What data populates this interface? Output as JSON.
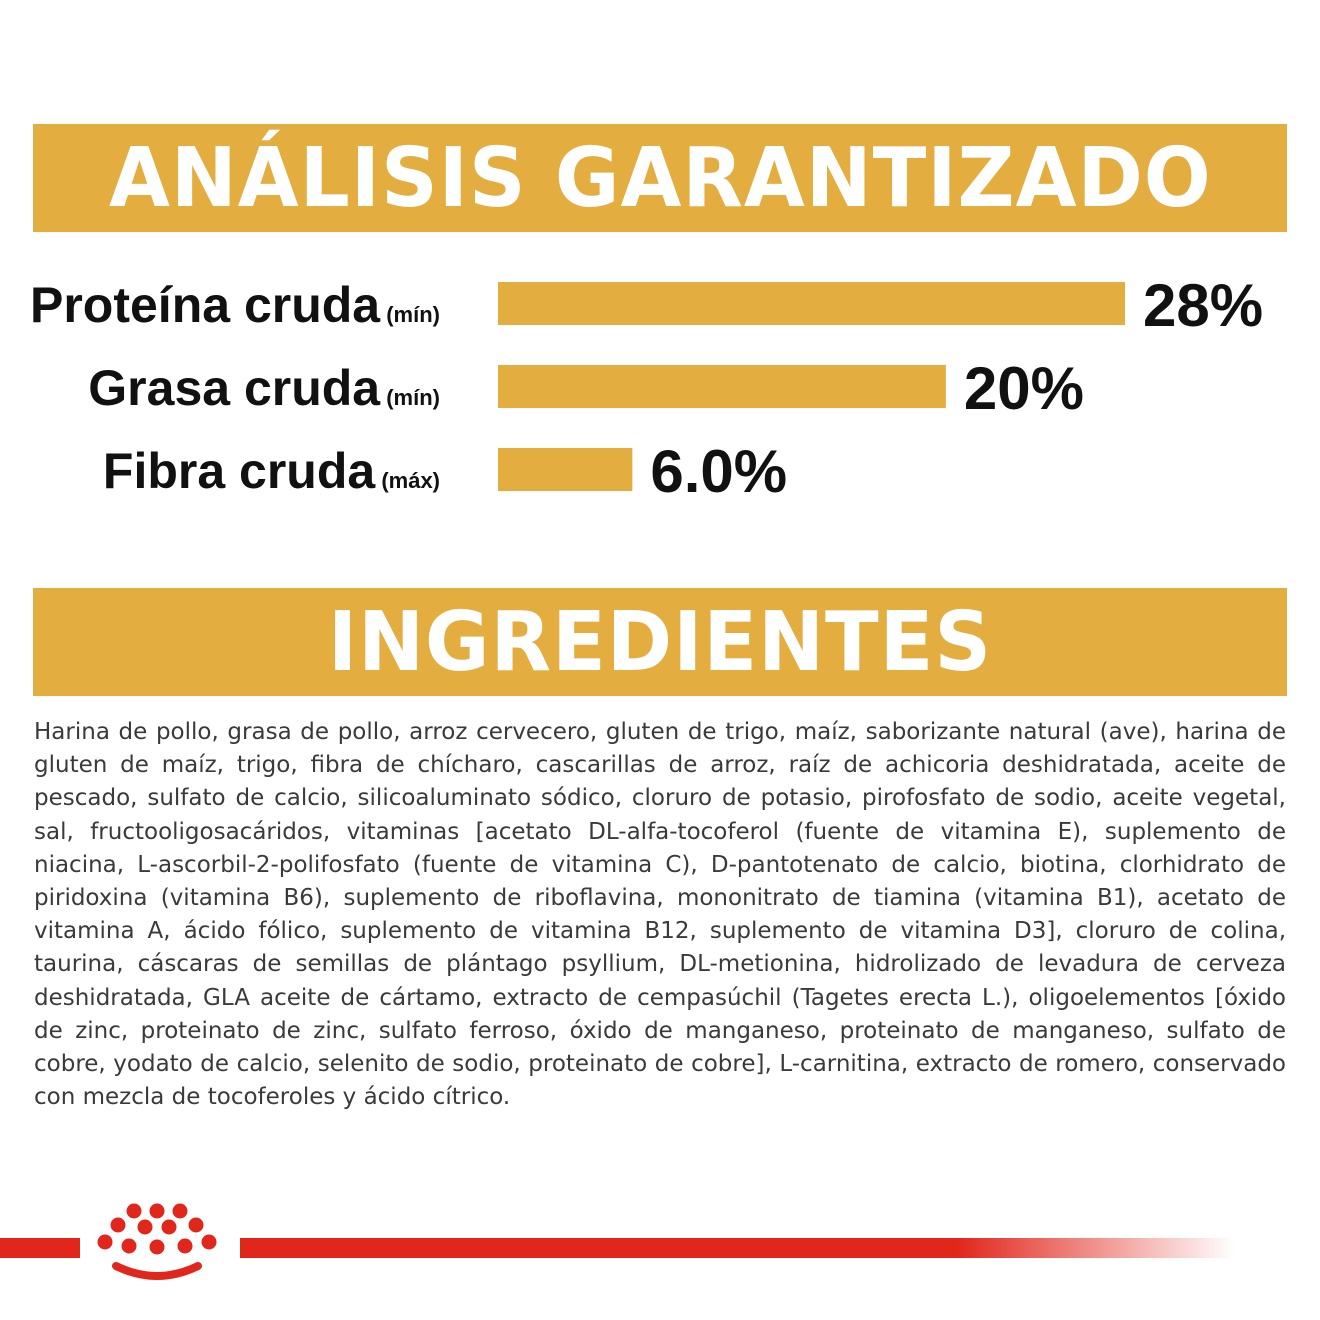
{
  "headers": {
    "analysis": "ANÁLISIS GARANTIZADO",
    "ingredients": "INGREDIENTES"
  },
  "colors": {
    "accent": "#e4ad3f",
    "brand_red": "#e1261c",
    "text": "#111111"
  },
  "chart_data": {
    "type": "bar",
    "orientation": "horizontal",
    "categories": [
      "Proteína cruda",
      "Grasa cruda",
      "Fibra cruda"
    ],
    "qualifiers": [
      "(mín)",
      "(mín)",
      "(máx)"
    ],
    "values": [
      28,
      20,
      6.0
    ],
    "value_labels": [
      "28%",
      "20%",
      "6.0%"
    ],
    "unit": "%",
    "xlim": [
      0,
      28
    ],
    "grid": false,
    "legend": "none",
    "bar_color": "#e4ad3f"
  },
  "ingredients": {
    "text": "Harina de pollo, grasa de pollo, arroz cervecero, gluten de trigo, maíz, saborizante natural (ave), harina de gluten de maíz, trigo, fibra de chícharo, cascarillas de arroz, raíz de achicoria deshidratada, aceite de pescado, sulfato de calcio, silicoaluminato sódico, cloruro de potasio, pirofosfato de sodio, aceite vegetal, sal, fructooligosacáridos, vitaminas [acetato DL-alfa-tocoferol (fuente de vitamina E), suplemento de niacina, L-ascorbil-2-polifosfato (fuente de vitamina C), D-pantotenato de calcio, biotina, clorhidrato de piridoxina (vitamina B6), suplemento de riboflavina, mononitrato de tiamina (vitamina B1), acetato de vitamina A, ácido fólico, suplemento de vitamina B12, suplemento de vitamina D3], cloruro de colina, taurina, cáscaras de semillas de plántago psyllium, DL-metionina, hidrolizado de levadura de cerveza deshidratada, GLA aceite de cártamo, extracto de cempasúchil (Tagetes erecta L.), oligoelementos [óxido de zinc, proteinato de zinc, sulfato ferroso, óxido de manganeso, proteinato de manganeso, sulfato de cobre, yodato de calcio, selenito de sodio, proteinato de cobre], L-carnitina, extracto de romero, conservado con mezcla de tocoferoles y ácido cítrico."
  },
  "footer": {
    "logo_icon": "crown-logo-icon"
  }
}
